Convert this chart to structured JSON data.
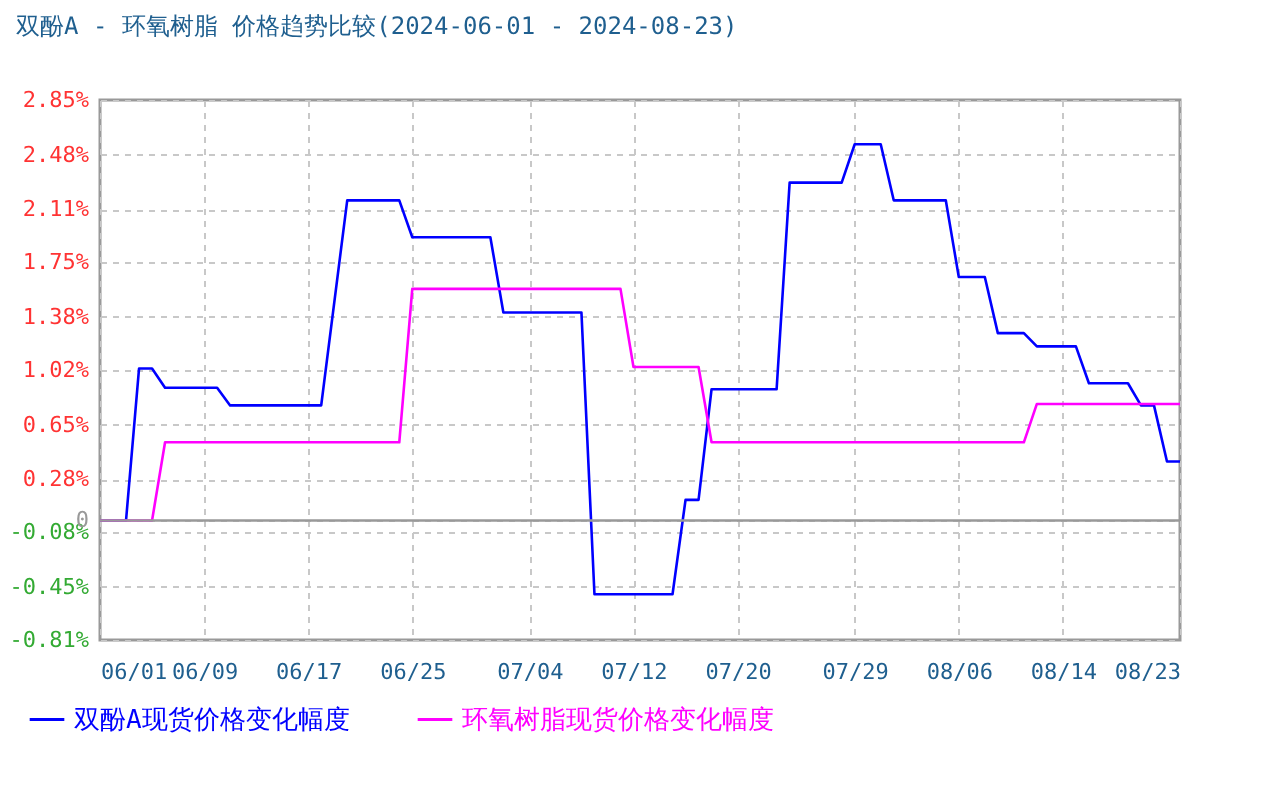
{
  "chart_data": {
    "type": "line",
    "title": "双酚A - 环氧树脂 价格趋势比较(2024-06-01 - 2024-08-23)",
    "series": [
      {
        "name": "双酚A现货价格变化幅度",
        "color": "#0000ff",
        "x": [
          "2024-06-01",
          "2024-06-03",
          "2024-06-04",
          "2024-06-05",
          "2024-06-06",
          "2024-06-10",
          "2024-06-11",
          "2024-06-18",
          "2024-06-20",
          "2024-06-24",
          "2024-06-25",
          "2024-07-01",
          "2024-07-02",
          "2024-07-08",
          "2024-07-09",
          "2024-07-15",
          "2024-07-16",
          "2024-07-17",
          "2024-07-18",
          "2024-07-23",
          "2024-07-24",
          "2024-07-28",
          "2024-07-29",
          "2024-07-31",
          "2024-08-01",
          "2024-08-05",
          "2024-08-06",
          "2024-08-08",
          "2024-08-09",
          "2024-08-11",
          "2024-08-12",
          "2024-08-15",
          "2024-08-16",
          "2024-08-19",
          "2024-08-20",
          "2024-08-21",
          "2024-08-22",
          "2024-08-23"
        ],
        "values": [
          0,
          0,
          1.03,
          1.03,
          0.9,
          0.9,
          0.78,
          0.78,
          2.17,
          2.17,
          1.92,
          1.92,
          1.41,
          1.41,
          -0.5,
          -0.5,
          0.14,
          0.14,
          0.89,
          0.89,
          2.29,
          2.29,
          2.55,
          2.55,
          2.17,
          2.17,
          1.65,
          1.65,
          1.27,
          1.27,
          1.18,
          1.18,
          0.93,
          0.93,
          0.78,
          0.78,
          0.4,
          0.4
        ]
      },
      {
        "name": "环氧树脂现货价格变化幅度",
        "color": "#ff00ff",
        "x": [
          "2024-06-01",
          "2024-06-05",
          "2024-06-06",
          "2024-06-24",
          "2024-06-25",
          "2024-07-11",
          "2024-07-12",
          "2024-07-17",
          "2024-07-18",
          "2024-08-11",
          "2024-08-12",
          "2024-08-23"
        ],
        "values": [
          0,
          0,
          0.53,
          0.53,
          1.57,
          1.57,
          1.04,
          1.04,
          0.53,
          0.53,
          0.79,
          0.79
        ]
      }
    ],
    "xlim": [
      "2024-06-01",
      "2024-08-23"
    ],
    "xticks": [
      {
        "value": "2024-06-01",
        "label": "06/01"
      },
      {
        "value": "2024-06-09",
        "label": "06/09"
      },
      {
        "value": "2024-06-17",
        "label": "06/17"
      },
      {
        "value": "2024-06-25",
        "label": "06/25"
      },
      {
        "value": "2024-07-04",
        "label": "07/04"
      },
      {
        "value": "2024-07-12",
        "label": "07/12"
      },
      {
        "value": "2024-07-20",
        "label": "07/20"
      },
      {
        "value": "2024-07-29",
        "label": "07/29"
      },
      {
        "value": "2024-08-06",
        "label": "08/06"
      },
      {
        "value": "2024-08-14",
        "label": "08/14"
      },
      {
        "value": "2024-08-23",
        "label": "08/23"
      }
    ],
    "ylim": [
      -0.81,
      2.85
    ],
    "yticks": [
      {
        "value": -0.81,
        "label": "-0.81%"
      },
      {
        "value": -0.45,
        "label": "-0.45%"
      },
      {
        "value": -0.08,
        "label": "-0.08%"
      },
      0,
      {
        "value": 0.28,
        "label": "0.28%"
      },
      {
        "value": 0.65,
        "label": "0.65%"
      },
      {
        "value": 1.02,
        "label": "1.02%"
      },
      {
        "value": 1.38,
        "label": "1.38%"
      },
      {
        "value": 1.75,
        "label": "1.75%"
      },
      {
        "value": 2.11,
        "label": "2.11%"
      },
      {
        "value": 2.48,
        "label": "2.48%"
      },
      {
        "value": 2.85,
        "label": "2.85%"
      }
    ],
    "ref_lines": [
      {
        "axis": "y",
        "value": 0
      }
    ],
    "grid": true,
    "legend": "bottom"
  }
}
